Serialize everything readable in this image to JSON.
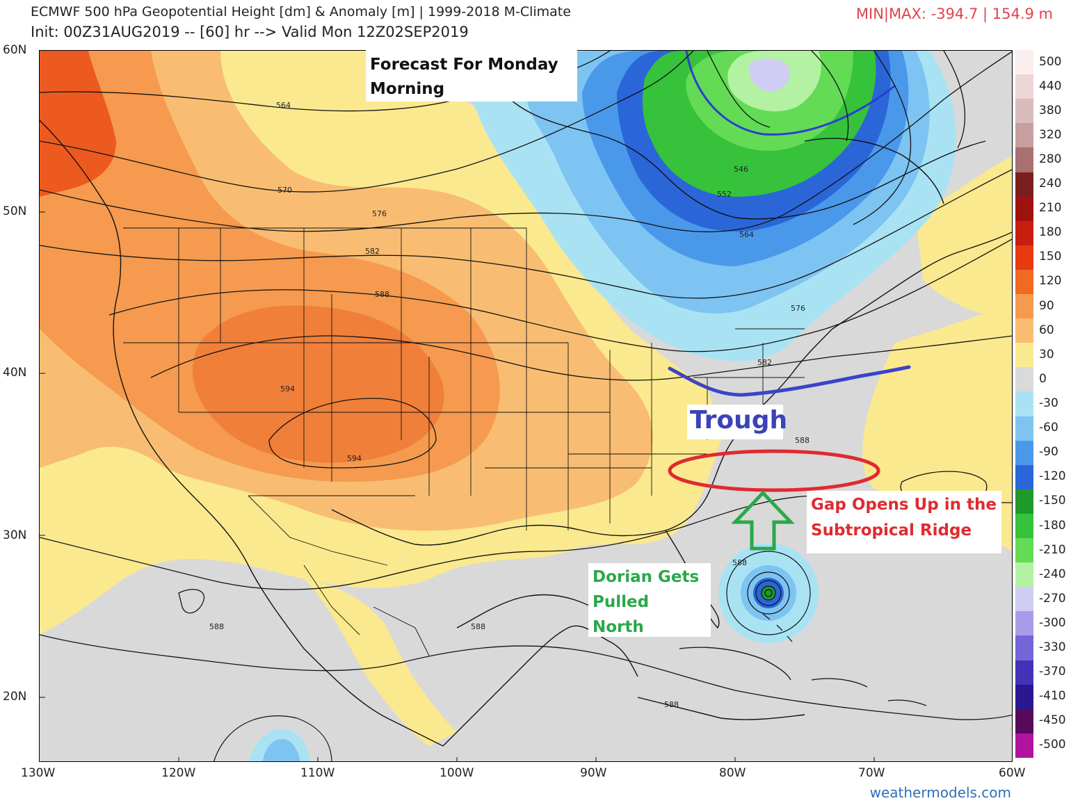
{
  "header": {
    "title": "ECMWF 500 hPa Geopotential Height [dm] & Anomaly [m] | 1999-2018 M-Climate",
    "init": "Init: 00Z31AUG2019 -- [60] hr --> Valid Mon 12Z02SEP2019",
    "minmax": "MIN|MAX: -394.7 | 154.9 m"
  },
  "map": {
    "latitudes": [
      "60N",
      "50N",
      "40N",
      "30N",
      "20N"
    ],
    "longitudes": [
      "130W",
      "120W",
      "110W",
      "100W",
      "90W",
      "80W",
      "70W",
      "60W"
    ],
    "contour_labels": [
      "564",
      "570",
      "576",
      "582",
      "588",
      "594",
      "594",
      "546",
      "552",
      "564",
      "576",
      "582",
      "588",
      "588",
      "588",
      "588",
      "588"
    ]
  },
  "colorbar": {
    "labels": [
      "500",
      "440",
      "380",
      "320",
      "280",
      "240",
      "210",
      "180",
      "150",
      "120",
      "90",
      "60",
      "30",
      "0",
      "-30",
      "-60",
      "-90",
      "-120",
      "-150",
      "-180",
      "-210",
      "-240",
      "-270",
      "-300",
      "-330",
      "-370",
      "-410",
      "-450",
      "-500"
    ],
    "colors": [
      "#fbeeee",
      "#ecd6d6",
      "#d9bcbc",
      "#c79f9f",
      "#a87070",
      "#7a1e1e",
      "#9e1210",
      "#c81e10",
      "#e83a10",
      "#f06a22",
      "#f59a4e",
      "#f8bd72",
      "#fbe98f",
      "#dadada",
      "#a9e3f3",
      "#7ec4f2",
      "#4a98ea",
      "#2a66d8",
      "#1f9a2a",
      "#36c23a",
      "#63db55",
      "#b2f2a2",
      "#d0cdf4",
      "#a89ce8",
      "#7466d8",
      "#4432b8",
      "#2a1890",
      "#580a5a",
      "#b0149e"
    ]
  },
  "annotations": {
    "forecast": [
      "Forecast For Monday",
      "Morning"
    ],
    "trough": "Trough",
    "gap": [
      "Gap Opens Up in the",
      "Subtropical Ridge"
    ],
    "dorian": [
      "Dorian Gets",
      "Pulled",
      "North"
    ]
  },
  "colors": {
    "trough_line": "#3b43c8",
    "gap_ellipse": "#e02a2f",
    "arrow": "#2aa84a"
  },
  "credit": "weathermodels.com"
}
